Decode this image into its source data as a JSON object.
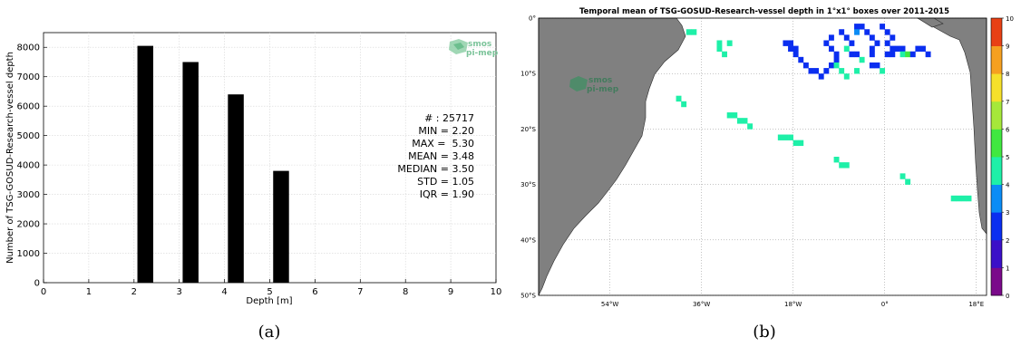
{
  "chart_data": [
    {
      "type": "bar",
      "xlabel": "Depth [m]",
      "ylabel": "Number of TSG-GOSUD-Research-vessel depth",
      "xlim": [
        0,
        10
      ],
      "ylim": [
        0,
        8500
      ],
      "xticks": [
        "0",
        "1",
        "2",
        "3",
        "4",
        "5",
        "6",
        "7",
        "8",
        "9",
        "10"
      ],
      "yticks": [
        "0",
        "1000",
        "2000",
        "3000",
        "4000",
        "5000",
        "6000",
        "7000",
        "8000"
      ],
      "grid": true,
      "bar_color": "#000000",
      "series": [
        {
          "x": [
            2.25,
            3.25,
            4.25,
            5.25
          ],
          "values": [
            8050,
            7500,
            6400,
            3800
          ]
        }
      ],
      "annotations": [
        "# : 25717",
        "MIN = 2.20",
        "MAX =  5.30",
        "MEAN = 3.48",
        "MEDIAN = 3.50",
        "STD = 1.05",
        "IQR = 1.90"
      ],
      "logo": [
        "smos",
        "pi-mep"
      ],
      "caption": "(a)"
    },
    {
      "type": "heatmap",
      "title": "Temporal mean of TSG-GOSUD-Research-vessel depth in 1°x1° boxes over 2011-2015",
      "lon_range": [
        -68,
        20
      ],
      "lat_range": [
        -50,
        0
      ],
      "xticks": [
        "54°W",
        "36°W",
        "18°W",
        "0°",
        "18°E"
      ],
      "yticks": [
        "0°",
        "10°S",
        "20°S",
        "30°S",
        "40°S",
        "50°S"
      ],
      "colorbar": {
        "min": 0,
        "max": 10,
        "ticks": [
          "0",
          "1",
          "2",
          "3",
          "4",
          "5",
          "6",
          "7",
          "8",
          "9",
          "10"
        ]
      },
      "land_color": "#808080",
      "ocean_color": "#ffffff",
      "colors": {
        "depth_2": "#0a2ef0",
        "depth_3": "#0b8cf5",
        "depth_4": "#1ef0a8",
        "depth_5": "#40e840"
      },
      "cells": [
        {
          "lon": -39,
          "lat": -2,
          "v": 4
        },
        {
          "lon": -38,
          "lat": -2,
          "v": 4
        },
        {
          "lon": -33,
          "lat": -4,
          "v": 4
        },
        {
          "lon": -33,
          "lat": -5,
          "v": 4
        },
        {
          "lon": -32,
          "lat": -6,
          "v": 4
        },
        {
          "lon": -31,
          "lat": -4,
          "v": 4
        },
        {
          "lon": -20,
          "lat": -4,
          "v": 2
        },
        {
          "lon": -19,
          "lat": -4,
          "v": 2
        },
        {
          "lon": -19,
          "lat": -5,
          "v": 2
        },
        {
          "lon": -18,
          "lat": -5,
          "v": 2
        },
        {
          "lon": -18,
          "lat": -6,
          "v": 2
        },
        {
          "lon": -17,
          "lat": -7,
          "v": 2
        },
        {
          "lon": -16,
          "lat": -8,
          "v": 2
        },
        {
          "lon": -15,
          "lat": -9,
          "v": 2
        },
        {
          "lon": -14,
          "lat": -9,
          "v": 2
        },
        {
          "lon": -13,
          "lat": -10,
          "v": 2
        },
        {
          "lon": -12,
          "lat": -9,
          "v": 2
        },
        {
          "lon": -11,
          "lat": -8,
          "v": 2
        },
        {
          "lon": -10,
          "lat": -7,
          "v": 2
        },
        {
          "lon": -10,
          "lat": -6,
          "v": 2
        },
        {
          "lon": -11,
          "lat": -5,
          "v": 2
        },
        {
          "lon": -12,
          "lat": -4,
          "v": 2
        },
        {
          "lon": -11,
          "lat": -3,
          "v": 2
        },
        {
          "lon": -9,
          "lat": -2,
          "v": 2
        },
        {
          "lon": -8,
          "lat": -3,
          "v": 2
        },
        {
          "lon": -7,
          "lat": -4,
          "v": 2
        },
        {
          "lon": -8,
          "lat": -5,
          "v": 4
        },
        {
          "lon": -7,
          "lat": -6,
          "v": 2
        },
        {
          "lon": -6,
          "lat": -6,
          "v": 2
        },
        {
          "lon": -5,
          "lat": -7,
          "v": 4
        },
        {
          "lon": -6,
          "lat": -1,
          "v": 2
        },
        {
          "lon": -6,
          "lat": -2,
          "v": 3
        },
        {
          "lon": -5,
          "lat": -1,
          "v": 2
        },
        {
          "lon": -4,
          "lat": -2,
          "v": 2
        },
        {
          "lon": -3,
          "lat": -3,
          "v": 2
        },
        {
          "lon": -2,
          "lat": -4,
          "v": 2
        },
        {
          "lon": -1,
          "lat": -1,
          "v": 2
        },
        {
          "lon": 0,
          "lat": -2,
          "v": 2
        },
        {
          "lon": 0,
          "lat": -6,
          "v": 2
        },
        {
          "lon": 1,
          "lat": -6,
          "v": 2
        },
        {
          "lon": 1,
          "lat": -5,
          "v": 2
        },
        {
          "lon": 2,
          "lat": -5,
          "v": 2
        },
        {
          "lon": 3,
          "lat": -5,
          "v": 2
        },
        {
          "lon": 3,
          "lat": -6,
          "v": 4
        },
        {
          "lon": 4,
          "lat": -6,
          "v": 5
        },
        {
          "lon": 5,
          "lat": -6,
          "v": 2
        },
        {
          "lon": 6,
          "lat": -5,
          "v": 2
        },
        {
          "lon": 7,
          "lat": -5,
          "v": 2
        },
        {
          "lon": 8,
          "lat": -6,
          "v": 2
        },
        {
          "lon": -3,
          "lat": -8,
          "v": 2
        },
        {
          "lon": -2,
          "lat": -8,
          "v": 2
        },
        {
          "lon": -1,
          "lat": -9,
          "v": 4
        },
        {
          "lon": -3,
          "lat": -5,
          "v": 2
        },
        {
          "lon": -3,
          "lat": -6,
          "v": 2
        },
        {
          "lon": 0,
          "lat": -4,
          "v": 2
        },
        {
          "lon": 1,
          "lat": -3,
          "v": 2
        },
        {
          "lon": -10,
          "lat": -8,
          "v": 4
        },
        {
          "lon": -9,
          "lat": -9,
          "v": 4
        },
        {
          "lon": -8,
          "lat": -10,
          "v": 4
        },
        {
          "lon": -6,
          "lat": -9,
          "v": 4
        },
        {
          "lon": -41,
          "lat": -14,
          "v": 4
        },
        {
          "lon": -40,
          "lat": -15,
          "v": 4
        },
        {
          "lon": -31,
          "lat": -17,
          "v": 4
        },
        {
          "lon": -30,
          "lat": -17,
          "v": 4
        },
        {
          "lon": -29,
          "lat": -18,
          "v": 4
        },
        {
          "lon": -28,
          "lat": -18,
          "v": 4
        },
        {
          "lon": -27,
          "lat": -19,
          "v": 4
        },
        {
          "lon": -21,
          "lat": -21,
          "v": 4
        },
        {
          "lon": -20,
          "lat": -21,
          "v": 4
        },
        {
          "lon": -19,
          "lat": -21,
          "v": 4
        },
        {
          "lon": -18,
          "lat": -22,
          "v": 4
        },
        {
          "lon": -17,
          "lat": -22,
          "v": 4
        },
        {
          "lon": -10,
          "lat": -25,
          "v": 4
        },
        {
          "lon": -9,
          "lat": -26,
          "v": 4
        },
        {
          "lon": -8,
          "lat": -26,
          "v": 4
        },
        {
          "lon": 3,
          "lat": -28,
          "v": 4
        },
        {
          "lon": 4,
          "lat": -29,
          "v": 4
        },
        {
          "lon": 13,
          "lat": -32,
          "v": 4
        },
        {
          "lon": 14,
          "lat": -32,
          "v": 4
        },
        {
          "lon": 15,
          "lat": -32,
          "v": 4
        },
        {
          "lon": 16,
          "lat": -32,
          "v": 4
        }
      ],
      "logo": [
        "smos",
        "pi-mep"
      ],
      "caption": "(b)"
    }
  ]
}
